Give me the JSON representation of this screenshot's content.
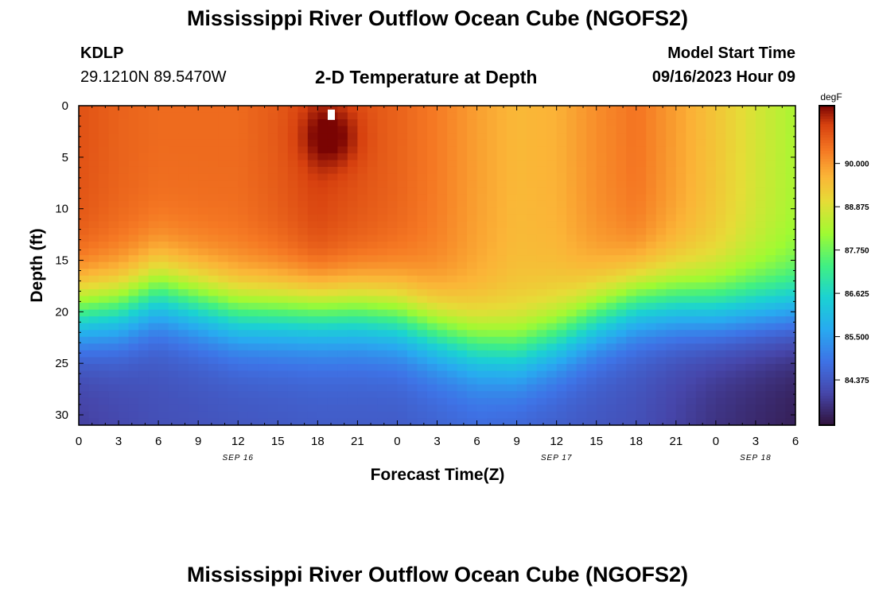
{
  "header": {
    "title": "Mississippi River Outflow Ocean Cube (NGOFS2)",
    "station_id": "KDLP",
    "station_coords": "29.1210N  89.5470W",
    "plot_title": "2-D Temperature at Depth",
    "model_start_label": "Model Start Time",
    "model_start_value": "09/16/2023 Hour 09"
  },
  "footer": {
    "title": "Mississippi River Outflow Ocean Cube (NGOFS2)"
  },
  "chart_data": {
    "type": "heatmap",
    "title": "2-D Temperature at Depth",
    "xlabel": "Forecast Time(Z)",
    "ylabel": "Depth (ft)",
    "x_range": [
      0,
      54
    ],
    "y_range": [
      0,
      31
    ],
    "x_ticks": [
      0,
      3,
      6,
      9,
      12,
      15,
      18,
      21,
      24,
      27,
      30,
      33,
      36,
      39,
      42,
      45,
      48,
      51,
      54
    ],
    "x_tick_labels": [
      "0",
      "3",
      "6",
      "9",
      "12",
      "15",
      "18",
      "21",
      "0",
      "3",
      "6",
      "9",
      "12",
      "15",
      "18",
      "21",
      "0",
      "3",
      "6"
    ],
    "y_ticks": [
      0,
      5,
      10,
      15,
      20,
      25,
      30
    ],
    "y_tick_labels": [
      "0",
      "5",
      "10",
      "15",
      "20",
      "25",
      "30"
    ],
    "date_labels": [
      {
        "text": "SEP 16",
        "at": 12
      },
      {
        "text": "SEP 17",
        "at": 36
      },
      {
        "text": "SEP 18",
        "at": 51
      }
    ],
    "colorbar": {
      "units": "degF",
      "min": 83.2,
      "max": 91.5,
      "ticks": [
        84.375,
        85.5,
        86.625,
        87.75,
        88.875,
        90.0
      ],
      "tick_labels": [
        "84.375",
        "85.500",
        "86.625",
        "87.750",
        "88.875",
        "90.000"
      ]
    },
    "thermocline_depth_ft": {
      "x": [
        0,
        3,
        6,
        9,
        12,
        15,
        18,
        21,
        24,
        27,
        30,
        33,
        36,
        39,
        42,
        45,
        48,
        51,
        54
      ],
      "depth": [
        20,
        19.6,
        18,
        19,
        20,
        20,
        20,
        20,
        20.5,
        22,
        23.3,
        23.8,
        22.5,
        20.5,
        19,
        19,
        19.5,
        19.5,
        19.5
      ]
    },
    "mixed_layer_temp_degF": {
      "x": [
        0,
        3,
        6,
        9,
        12,
        15,
        18,
        21,
        24,
        27,
        30,
        33,
        36,
        39,
        42,
        45,
        48,
        51,
        54
      ],
      "temp": [
        90.8,
        90.6,
        90.5,
        90.5,
        90.5,
        90.7,
        91.0,
        90.8,
        90.6,
        90.3,
        89.9,
        89.6,
        89.7,
        90.1,
        90.4,
        89.9,
        89.4,
        88.8,
        88.3
      ]
    },
    "bottom_temp_degF": {
      "x": [
        0,
        6,
        12,
        18,
        24,
        30,
        36,
        42,
        48,
        54
      ],
      "temp": [
        83.9,
        84.2,
        84.3,
        84.4,
        84.4,
        84.6,
        84.4,
        84.2,
        83.7,
        83.4
      ]
    },
    "hot_spot": {
      "x": 19,
      "depth": 3,
      "temp": 91.5
    }
  }
}
